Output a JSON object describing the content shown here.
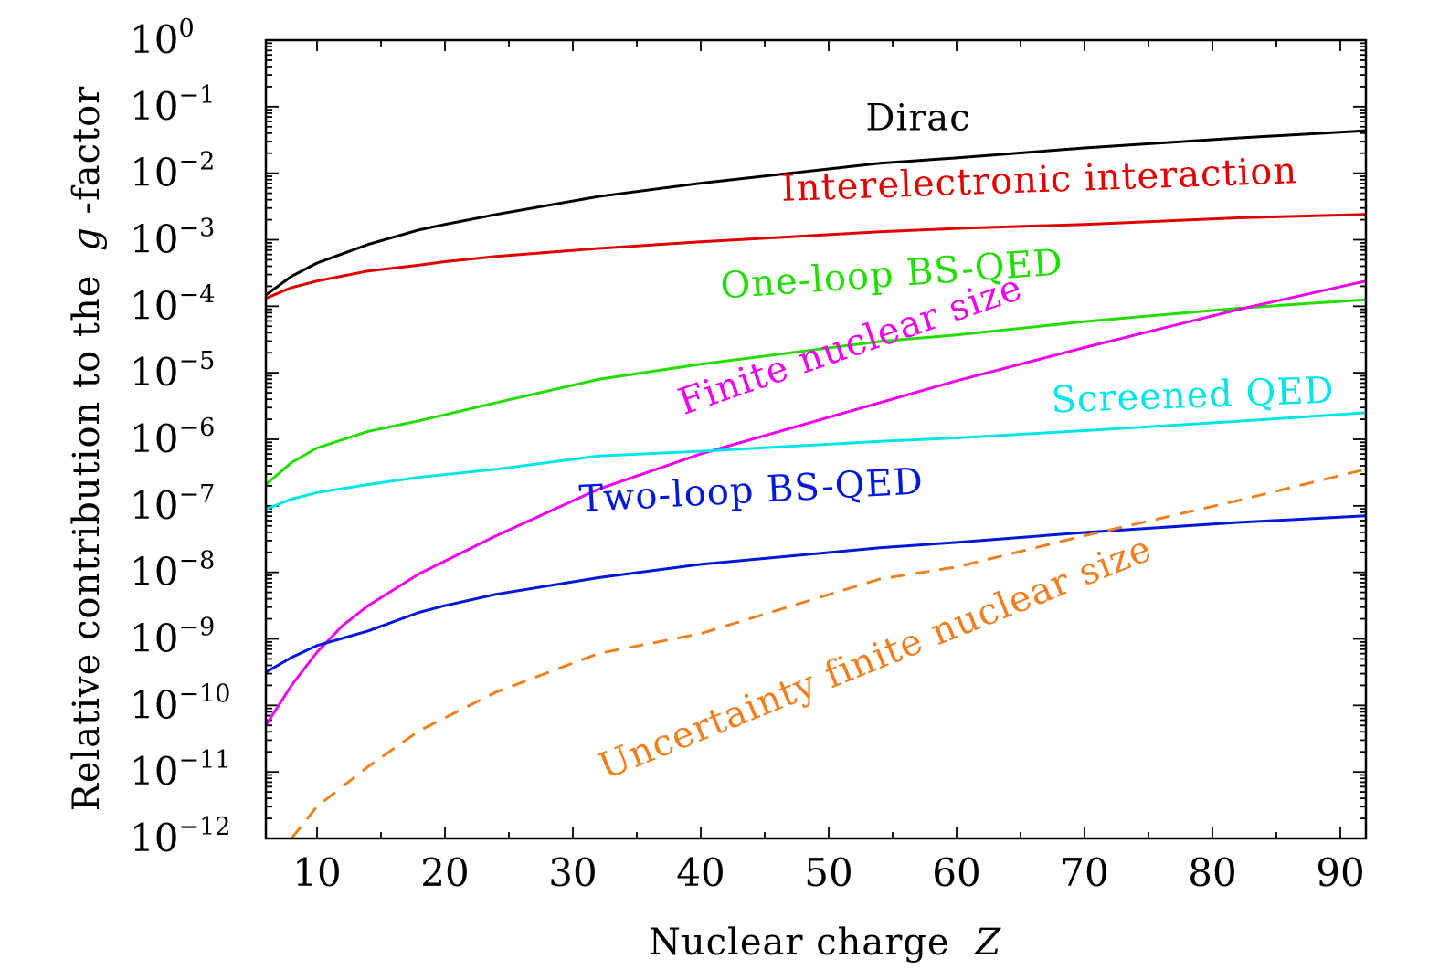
{
  "chart_data": {
    "type": "line",
    "title": "",
    "xlabel": "Nuclear charge",
    "xlabel_var": "Z",
    "ylabel": "Relative contribution to the",
    "ylabel_var": "g",
    "ylabel_suffix": "-factor",
    "x_scale": "linear",
    "y_scale": "log",
    "xlim": [
      6,
      92
    ],
    "ylim_log10": [
      -12,
      0
    ],
    "x_ticks": [
      10,
      20,
      30,
      40,
      50,
      60,
      70,
      80,
      90
    ],
    "x_tick_labels": [
      "10",
      "20",
      "30",
      "40",
      "50",
      "60",
      "70",
      "80",
      "90"
    ],
    "y_tick_exponents": [
      0,
      -1,
      -2,
      -3,
      -4,
      -5,
      -6,
      -7,
      -8,
      -9,
      -10,
      -11,
      -12
    ],
    "y_tick_labels": [
      {
        "base": "10",
        "exp": "0"
      },
      {
        "base": "10",
        "exp": "−1"
      },
      {
        "base": "10",
        "exp": "−2"
      },
      {
        "base": "10",
        "exp": "−3"
      },
      {
        "base": "10",
        "exp": "−4"
      },
      {
        "base": "10",
        "exp": "−5"
      },
      {
        "base": "10",
        "exp": "−6"
      },
      {
        "base": "10",
        "exp": "−7"
      },
      {
        "base": "10",
        "exp": "−8"
      },
      {
        "base": "10",
        "exp": "−9"
      },
      {
        "base": "10",
        "exp": "−10"
      },
      {
        "base": "10",
        "exp": "−11"
      },
      {
        "base": "10",
        "exp": "−12"
      }
    ],
    "series": [
      {
        "name": "Dirac",
        "color": "#000000",
        "dashed": false,
        "label_anchor": {
          "x": 57,
          "log10y": -1.35
        },
        "label_rotation": 0,
        "x": [
          6,
          8,
          10,
          14,
          18,
          20,
          24,
          32,
          40,
          54,
          60,
          70,
          82,
          92
        ],
        "log10y": [
          -3.83,
          -3.55,
          -3.35,
          -3.07,
          -2.85,
          -2.77,
          -2.62,
          -2.35,
          -2.15,
          -1.85,
          -1.77,
          -1.62,
          -1.47,
          -1.36
        ]
      },
      {
        "name": "Interelectronic interaction",
        "color": "#e00000",
        "dashed": false,
        "label_anchor": {
          "x": 66.5,
          "log10y": -2.28
        },
        "label_rotation": -2,
        "x": [
          6,
          8,
          10,
          14,
          18,
          20,
          24,
          32,
          40,
          54,
          60,
          70,
          82,
          92
        ],
        "log10y": [
          -3.88,
          -3.72,
          -3.62,
          -3.47,
          -3.38,
          -3.33,
          -3.25,
          -3.13,
          -3.03,
          -2.88,
          -2.83,
          -2.77,
          -2.67,
          -2.62
        ]
      },
      {
        "name": "One-loop BS-QED",
        "color": "#22dd00",
        "dashed": false,
        "label_anchor": {
          "x": 55,
          "log10y": -3.7
        },
        "label_rotation": -4,
        "x": [
          6,
          8,
          10,
          14,
          18,
          20,
          24,
          32,
          40,
          54,
          60,
          70,
          82,
          92
        ],
        "log10y": [
          -6.68,
          -6.35,
          -6.13,
          -5.88,
          -5.72,
          -5.63,
          -5.45,
          -5.1,
          -4.87,
          -4.53,
          -4.43,
          -4.23,
          -4.03,
          -3.9
        ]
      },
      {
        "name": "Finite nuclear size",
        "color": "#ee00ee",
        "dashed": false,
        "label_anchor": {
          "x": 52,
          "log10y": -4.75
        },
        "label_rotation": -19,
        "x": [
          6,
          8,
          10,
          12,
          14,
          18,
          24,
          32,
          40,
          54,
          60,
          70,
          82,
          92
        ],
        "log10y": [
          -10.3,
          -9.7,
          -9.2,
          -8.8,
          -8.5,
          -8.02,
          -7.45,
          -6.75,
          -6.22,
          -5.45,
          -5.12,
          -4.62,
          -4.05,
          -3.62
        ]
      },
      {
        "name": "Screened QED",
        "color": "#00e5e5",
        "dashed": false,
        "label_anchor": {
          "x": 78.5,
          "log10y": -5.52
        },
        "label_rotation": -2,
        "x": [
          6,
          8,
          10,
          14,
          18,
          20,
          24,
          32,
          40,
          54,
          60,
          70,
          82,
          92
        ],
        "log10y": [
          -7.05,
          -6.9,
          -6.8,
          -6.68,
          -6.57,
          -6.53,
          -6.45,
          -6.25,
          -6.18,
          -6.03,
          -5.98,
          -5.87,
          -5.73,
          -5.6
        ]
      },
      {
        "name": "Two-loop BS-QED",
        "color": "#0018d8",
        "dashed": false,
        "label_anchor": {
          "x": 44,
          "log10y": -6.95
        },
        "label_rotation": -3,
        "x": [
          6,
          8,
          10,
          14,
          18,
          20,
          24,
          32,
          40,
          54,
          60,
          70,
          82,
          92
        ],
        "log10y": [
          -9.5,
          -9.28,
          -9.1,
          -8.88,
          -8.6,
          -8.5,
          -8.33,
          -8.08,
          -7.88,
          -7.63,
          -7.55,
          -7.4,
          -7.25,
          -7.15
        ]
      },
      {
        "name": "Uncertainty finite nuclear size",
        "color": "#ee8020",
        "dashed": true,
        "label_anchor": {
          "x": 54,
          "log10y": -9.45
        },
        "label_rotation": -22,
        "x": [
          8,
          10,
          14,
          18,
          24,
          32,
          40,
          54,
          60,
          70,
          82,
          92
        ],
        "log10y": [
          -12.0,
          -11.52,
          -10.92,
          -10.38,
          -9.8,
          -9.22,
          -8.92,
          -8.1,
          -7.92,
          -7.45,
          -6.92,
          -6.45
        ]
      }
    ]
  }
}
